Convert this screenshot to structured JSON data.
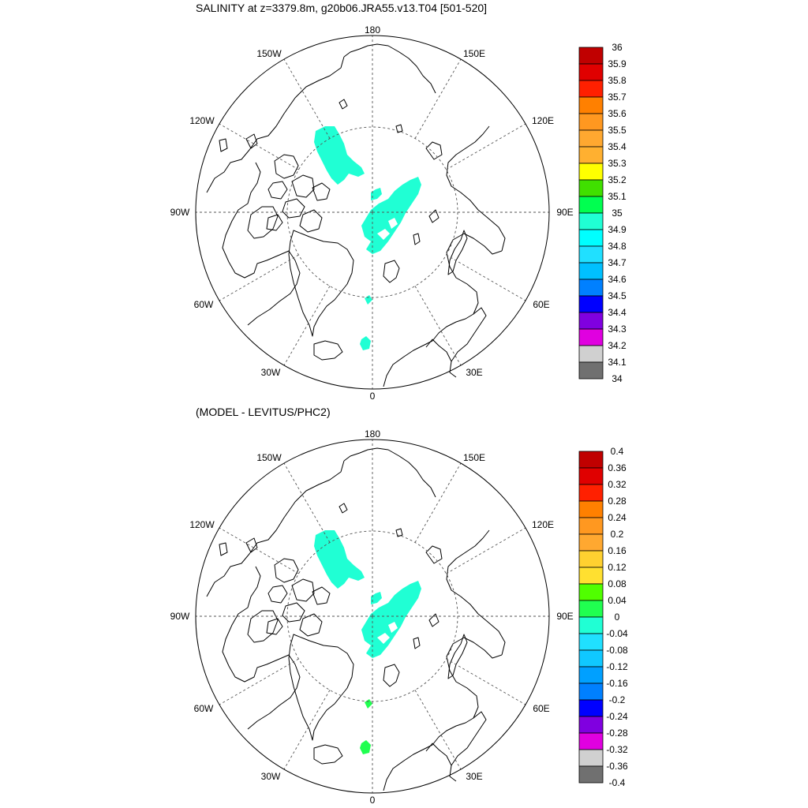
{
  "panels": [
    {
      "id": "top",
      "title": "SALINITY at z=3379.8m, g20b06.JRA55.v13.T04 [501-520]",
      "lon_labels": {
        "180": "180",
        "150E": "150E",
        "120E": "120E",
        "90E": "90E",
        "60E": "60E",
        "30E": "30E",
        "0": "0",
        "30W": "30W",
        "60W": "60W",
        "90W": "90W",
        "120W": "120W",
        "150W": "150W"
      },
      "field_color": "#20ffd4",
      "shelf_color": "#20ffd4",
      "colorbar": {
        "labels": [
          "36",
          "35.9",
          "35.8",
          "35.7",
          "35.6",
          "35.5",
          "35.4",
          "35.3",
          "35.2",
          "35.1",
          "35",
          "34.9",
          "34.8",
          "34.7",
          "34.6",
          "34.5",
          "34.4",
          "34.3",
          "34.2",
          "34.1",
          "34"
        ],
        "colors": [
          "#c00000",
          "#e00000",
          "#ff2000",
          "#ff8000",
          "#ff9820",
          "#ffa830",
          "#ffb030",
          "#ffff00",
          "#40e000",
          "#00ff50",
          "#20ffd4",
          "#00ffff",
          "#20e0ff",
          "#00c0ff",
          "#0080ff",
          "#0000ff",
          "#8000e0",
          "#e000e0",
          "#d0d0d0",
          "#707070"
        ]
      }
    },
    {
      "id": "bottom",
      "title": "(MODEL - LEVITUS/PHC2)",
      "lon_labels": {
        "180": "180",
        "150E": "150E",
        "120E": "120E",
        "90E": "90E",
        "60E": "60E",
        "30E": "30E",
        "0": "0",
        "30W": "30W",
        "60W": "60W",
        "90W": "90W",
        "120W": "120W",
        "150W": "150W"
      },
      "field_color": "#20ffd4",
      "shelf_color": "#20ff50",
      "colorbar": {
        "labels": [
          "0.4",
          "0.36",
          "0.32",
          "0.28",
          "0.24",
          "0.2",
          "0.16",
          "0.12",
          "0.08",
          "0.04",
          "0",
          "-0.04",
          "-0.08",
          "-0.12",
          "-0.16",
          "-0.2",
          "-0.24",
          "-0.28",
          "-0.32",
          "-0.36",
          "-0.4"
        ],
        "colors": [
          "#c00000",
          "#e00000",
          "#ff2000",
          "#ff8000",
          "#ff9820",
          "#ffa830",
          "#ffd030",
          "#ffe030",
          "#50ff00",
          "#20ff50",
          "#20ffd4",
          "#20e0ff",
          "#10c8ff",
          "#00a0ff",
          "#0080ff",
          "#0000ff",
          "#8000e0",
          "#e000e0",
          "#d0d0d0",
          "#707070"
        ]
      }
    }
  ]
}
